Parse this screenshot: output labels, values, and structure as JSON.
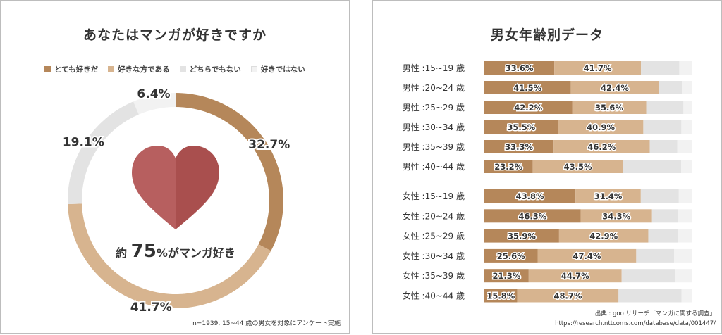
{
  "chart_data": [
    {
      "type": "pie",
      "title": "あなたはマンガが好きですか",
      "categories": [
        "とても好きだ",
        "好きな方である",
        "どちらでもない",
        "好きではない"
      ],
      "values": [
        32.7,
        41.7,
        19.1,
        6.4
      ],
      "value_labels": [
        "32.7%",
        "41.7%",
        "19.1%",
        "6.4%"
      ],
      "colors": [
        "#b5875a",
        "#d7b48f",
        "#e3e3e3",
        "#f2f2f2"
      ],
      "center_text": {
        "prefix": "約",
        "number": "75",
        "suffix": "%がマンガ好き"
      },
      "note": "n=1939, 15~44 歳の男女を対象にアンケート実施"
    },
    {
      "type": "bar",
      "orientation": "horizontal",
      "stacked": true,
      "title": "男女年齢別データ",
      "groups": [
        {
          "name": "男性",
          "categories": [
            "男性 :15~19 歳",
            "男性 :20~24 歳",
            "男性 :25~29 歳",
            "男性 :30~34 歳",
            "男性 :35~39 歳",
            "男性 :40~44 歳"
          ]
        },
        {
          "name": "女性",
          "categories": [
            "女性 :15~19 歳",
            "女性 :20~24 歳",
            "女性 :25~29 歳",
            "女性 :30~34 歳",
            "女性 :35~39 歳",
            "女性 :40~44 歳"
          ]
        }
      ],
      "series": [
        {
          "name": "とても好きだ",
          "color": "#b5875a",
          "values": [
            33.6,
            41.5,
            42.2,
            35.5,
            33.3,
            23.2,
            43.8,
            46.3,
            35.9,
            25.6,
            21.3,
            15.8
          ],
          "labels": [
            "33.6%",
            "41.5%",
            "42.2%",
            "35.5%",
            "33.3%",
            "23.2%",
            "43.8%",
            "46.3%",
            "35.9%",
            "25.6%",
            "21.3%",
            "15.8%"
          ]
        },
        {
          "name": "好きな方である",
          "color": "#d7b48f",
          "values": [
            41.7,
            42.4,
            35.6,
            40.9,
            46.2,
            43.5,
            31.4,
            34.3,
            42.9,
            47.4,
            44.7,
            48.7
          ],
          "labels": [
            "41.7%",
            "42.4%",
            "35.6%",
            "40.9%",
            "46.2%",
            "43.5%",
            "31.4%",
            "34.3%",
            "42.9%",
            "47.4%",
            "44.7%",
            "48.7%"
          ]
        },
        {
          "name": "どちらでもない",
          "color": "#e3e3e3",
          "values": [
            18.4,
            11.1,
            17.9,
            18.3,
            13.2,
            27.9,
            18.3,
            12.5,
            14.2,
            18.2,
            25.9,
            30.3
          ]
        },
        {
          "name": "好きではない",
          "color": "#f2f2f2",
          "values": [
            6.3,
            5.0,
            4.3,
            5.3,
            7.3,
            5.4,
            6.5,
            6.9,
            7.0,
            8.8,
            8.1,
            5.2
          ]
        }
      ],
      "xlim": [
        0,
        100
      ],
      "source": [
        "出典 : goo リサーチ「マンガに関する調査」",
        "https://research.nttcoms.com/database/data/001447/"
      ]
    }
  ]
}
